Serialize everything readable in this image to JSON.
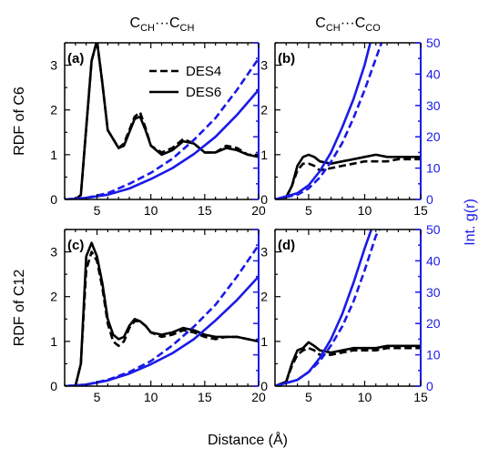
{
  "figure": {
    "column_titles": [
      {
        "main": "C",
        "sub1": "CH",
        "mid": "···C",
        "sub2": "CH"
      },
      {
        "main": "C",
        "sub1": "CH",
        "mid": "···C",
        "sub2": "CO"
      }
    ],
    "row_labels": [
      "RDF of C6",
      "RDF of C12"
    ],
    "right_axis_label": "Int. g(r)",
    "x_axis_label": "Distance (Å)",
    "legend": [
      {
        "name": "DES4",
        "style": "dashed"
      },
      {
        "name": "DES6",
        "style": "solid"
      }
    ],
    "colors": {
      "rdf": "#000000",
      "integral": "#1a1ae6",
      "right_axis": "#1a1ae6"
    }
  },
  "chart_data": [
    {
      "type": "line",
      "panel": "(a)",
      "xlim": [
        2,
        20
      ],
      "ylim": [
        0,
        3.5
      ],
      "y2lim": [
        0,
        50
      ],
      "xticks": [
        5,
        10,
        15,
        20
      ],
      "yticks": [
        0,
        1,
        2,
        3
      ],
      "series": [
        {
          "name": "DES4",
          "axis": "left",
          "style": "dashed",
          "x": [
            2,
            3,
            3.5,
            4,
            4.5,
            5,
            5.5,
            6,
            6.5,
            7,
            7.5,
            8,
            8.5,
            9,
            9.5,
            10,
            11,
            12,
            13,
            14,
            15,
            16,
            17,
            18,
            19,
            20
          ],
          "y": [
            0,
            0,
            0.1,
            1.6,
            3.1,
            3.55,
            2.6,
            1.55,
            1.35,
            1.15,
            1.25,
            1.55,
            1.85,
            1.95,
            1.6,
            1.2,
            1.05,
            1.15,
            1.35,
            1.25,
            1.05,
            1.05,
            1.2,
            1.15,
            1.0,
            1.0
          ]
        },
        {
          "name": "DES6",
          "axis": "left",
          "style": "solid",
          "x": [
            2,
            3,
            3.5,
            4,
            4.5,
            5,
            5.5,
            6,
            6.5,
            7,
            7.5,
            8,
            8.5,
            9,
            9.5,
            10,
            11,
            12,
            13,
            14,
            15,
            16,
            17,
            18,
            19,
            20
          ],
          "y": [
            0,
            0,
            0.1,
            1.6,
            3.1,
            3.55,
            2.6,
            1.55,
            1.35,
            1.15,
            1.2,
            1.5,
            1.8,
            1.85,
            1.55,
            1.2,
            1.0,
            1.1,
            1.3,
            1.25,
            1.05,
            1.05,
            1.15,
            1.1,
            1.0,
            0.95
          ]
        },
        {
          "name": "DES4",
          "axis": "right",
          "style": "dashed",
          "x": [
            2,
            4,
            6,
            8,
            10,
            12,
            14,
            16,
            18,
            20
          ],
          "y": [
            0,
            0.5,
            2,
            5,
            8.5,
            13,
            19,
            26,
            35,
            45
          ]
        },
        {
          "name": "DES6",
          "axis": "right",
          "style": "solid",
          "x": [
            2,
            4,
            6,
            8,
            10,
            12,
            14,
            16,
            18,
            20
          ],
          "y": [
            0,
            0.5,
            1.5,
            3.5,
            6.5,
            10,
            14.5,
            20,
            27,
            35
          ]
        }
      ]
    },
    {
      "type": "line",
      "panel": "(b)",
      "xlim": [
        2,
        15
      ],
      "ylim": [
        0,
        3.5
      ],
      "y2lim": [
        0,
        50
      ],
      "xticks": [
        5,
        10,
        15
      ],
      "yticks": [
        0,
        1,
        2,
        3
      ],
      "y2ticks": [
        0,
        10,
        20,
        30,
        40,
        50
      ],
      "series": [
        {
          "name": "DES4",
          "axis": "left",
          "style": "dashed",
          "x": [
            2,
            3,
            3.5,
            4,
            4.5,
            5,
            5.5,
            6,
            7,
            8,
            9,
            10,
            11,
            12,
            13,
            14,
            15
          ],
          "y": [
            0,
            0.05,
            0.3,
            0.65,
            0.8,
            0.8,
            0.75,
            0.65,
            0.7,
            0.75,
            0.8,
            0.85,
            0.85,
            0.85,
            0.9,
            0.9,
            0.9
          ]
        },
        {
          "name": "DES6",
          "axis": "left",
          "style": "solid",
          "x": [
            2,
            3,
            3.5,
            4,
            4.5,
            5,
            5.5,
            6,
            7,
            8,
            9,
            10,
            11,
            12,
            13,
            14,
            15
          ],
          "y": [
            0,
            0.05,
            0.3,
            0.75,
            0.95,
            1.0,
            0.95,
            0.85,
            0.8,
            0.85,
            0.9,
            0.95,
            1.0,
            0.95,
            0.95,
            0.95,
            0.95
          ]
        },
        {
          "name": "DES4",
          "axis": "right",
          "style": "dashed",
          "x": [
            2,
            4,
            5,
            6,
            7,
            8,
            9,
            10,
            11,
            11.5
          ],
          "y": [
            0,
            1.5,
            3.5,
            7,
            12,
            18,
            26,
            35,
            45,
            50
          ]
        },
        {
          "name": "DES6",
          "axis": "right",
          "style": "solid",
          "x": [
            2,
            4,
            5,
            6,
            7,
            8,
            9,
            10,
            10.5
          ],
          "y": [
            0,
            2,
            4.5,
            9,
            15,
            23,
            32,
            43,
            50
          ]
        }
      ]
    },
    {
      "type": "line",
      "panel": "(c)",
      "xlim": [
        2,
        20
      ],
      "ylim": [
        0,
        3.5
      ],
      "y2lim": [
        0,
        50
      ],
      "xticks": [
        5,
        10,
        15,
        20
      ],
      "yticks": [
        0,
        1,
        2,
        3
      ],
      "series": [
        {
          "name": "DES4",
          "axis": "left",
          "style": "dashed",
          "x": [
            2,
            3,
            3.5,
            4,
            4.5,
            5,
            5.5,
            6,
            6.5,
            7,
            7.5,
            8,
            8.5,
            9,
            9.5,
            10,
            11,
            12,
            13,
            14,
            15,
            16,
            17,
            18,
            19,
            20
          ],
          "y": [
            0,
            0,
            0.5,
            2.6,
            3.0,
            2.8,
            2.2,
            1.4,
            1.0,
            0.9,
            1.0,
            1.3,
            1.45,
            1.45,
            1.35,
            1.2,
            1.1,
            1.15,
            1.25,
            1.2,
            1.1,
            1.05,
            1.1,
            1.1,
            1.05,
            1.0
          ]
        },
        {
          "name": "DES6",
          "axis": "left",
          "style": "solid",
          "x": [
            2,
            3,
            3.5,
            4,
            4.5,
            5,
            5.5,
            6,
            6.5,
            7,
            7.5,
            8,
            8.5,
            9,
            9.5,
            10,
            11,
            12,
            13,
            14,
            15,
            16,
            17,
            18,
            19,
            20
          ],
          "y": [
            0,
            0,
            0.5,
            2.9,
            3.2,
            2.9,
            2.3,
            1.5,
            1.15,
            1.05,
            1.1,
            1.35,
            1.5,
            1.45,
            1.35,
            1.2,
            1.15,
            1.2,
            1.3,
            1.25,
            1.15,
            1.1,
            1.1,
            1.1,
            1.05,
            1.0
          ]
        },
        {
          "name": "DES4",
          "axis": "right",
          "style": "dashed",
          "x": [
            2,
            4,
            6,
            8,
            10,
            12,
            14,
            16,
            18,
            20
          ],
          "y": [
            0,
            0.5,
            2,
            4.5,
            8,
            13,
            19,
            26,
            35,
            45
          ]
        },
        {
          "name": "DES6",
          "axis": "right",
          "style": "solid",
          "x": [
            2,
            4,
            6,
            8,
            10,
            12,
            14,
            16,
            18,
            20
          ],
          "y": [
            0,
            0.5,
            1.8,
            4,
            7,
            10.5,
            15,
            21,
            27.5,
            35
          ]
        }
      ]
    },
    {
      "type": "line",
      "panel": "(d)",
      "xlim": [
        2,
        15
      ],
      "ylim": [
        0,
        3.5
      ],
      "y2lim": [
        0,
        50
      ],
      "xticks": [
        5,
        10,
        15
      ],
      "yticks": [
        0,
        1,
        2,
        3
      ],
      "y2ticks": [
        0,
        10,
        20,
        30,
        40,
        50
      ],
      "series": [
        {
          "name": "DES4",
          "axis": "left",
          "style": "dashed",
          "x": [
            2,
            3,
            3.5,
            4,
            4.5,
            5,
            5.5,
            6,
            7,
            8,
            9,
            10,
            11,
            12,
            13,
            14,
            15
          ],
          "y": [
            0,
            0.1,
            0.45,
            0.7,
            0.8,
            0.85,
            0.8,
            0.7,
            0.7,
            0.75,
            0.8,
            0.8,
            0.8,
            0.85,
            0.85,
            0.85,
            0.85
          ]
        },
        {
          "name": "DES6",
          "axis": "left",
          "style": "solid",
          "x": [
            2,
            3,
            3.5,
            4,
            4.5,
            5,
            5.5,
            6,
            7,
            8,
            9,
            10,
            11,
            12,
            13,
            14,
            15
          ],
          "y": [
            0,
            0.1,
            0.5,
            0.8,
            0.85,
            0.98,
            0.9,
            0.8,
            0.75,
            0.8,
            0.85,
            0.85,
            0.85,
            0.9,
            0.9,
            0.9,
            0.9
          ]
        },
        {
          "name": "DES4",
          "axis": "right",
          "style": "dashed",
          "x": [
            2,
            4,
            5,
            6,
            7,
            8,
            9,
            10,
            11,
            11.3
          ],
          "y": [
            0,
            2,
            4.5,
            8,
            13,
            19,
            27,
            37,
            48,
            50
          ]
        },
        {
          "name": "DES6",
          "axis": "right",
          "style": "solid",
          "x": [
            2,
            4,
            5,
            6,
            7,
            8,
            9,
            10,
            10.6
          ],
          "y": [
            0,
            2,
            4.5,
            9,
            15,
            23,
            33,
            44,
            50
          ]
        }
      ]
    }
  ]
}
